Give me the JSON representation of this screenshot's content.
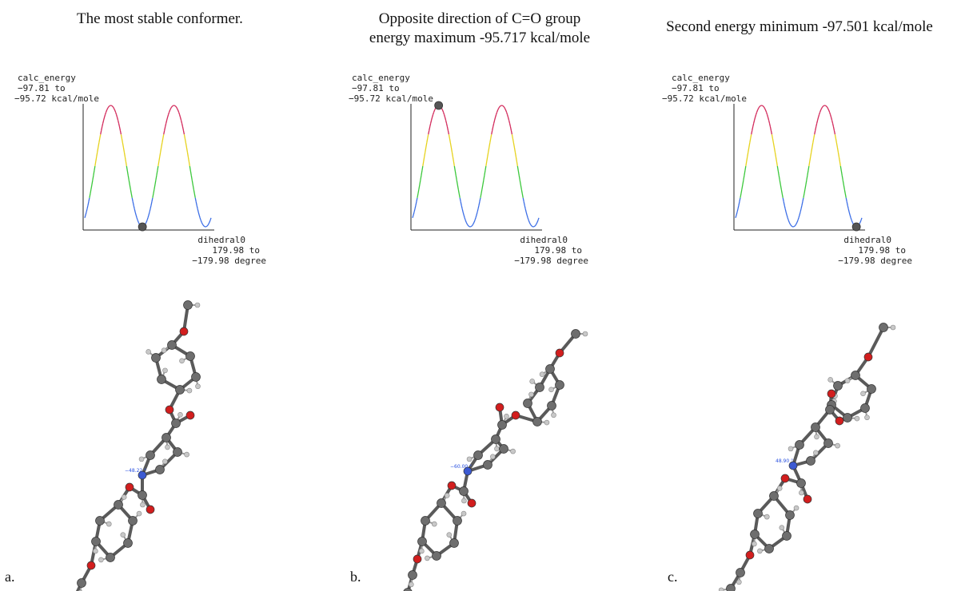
{
  "panels": [
    {
      "title_lines": [
        "The most stable conformer."
      ],
      "letter": "a.",
      "energy_label": "calc_energy",
      "energy_range_top": "−97.81 to",
      "energy_range_bottom": "−95.72 kcal/mole",
      "dihedral_label": "dihedral0",
      "dihedral_range_top": "179.98 to",
      "dihedral_range_bottom": "−179.98 degree",
      "measure_label": "−48.22 °",
      "marker_point": "first minimum"
    },
    {
      "title_lines": [
        "Opposite direction of C=O group",
        "energy maximum -95.717 kcal/mole"
      ],
      "letter": "b.",
      "energy_label": "calc_energy",
      "energy_range_top": "−97.81 to",
      "energy_range_bottom": "−95.72 kcal/mole",
      "dihedral_label": "dihedral0",
      "dihedral_range_top": "179.98 to",
      "dihedral_range_bottom": "−179.98 degree",
      "measure_label": "−60.00 °",
      "marker_point": "first maximum"
    },
    {
      "title_lines": [
        "Second energy minimum -97.501 kcal/mole"
      ],
      "letter": "c.",
      "energy_label": "calc_energy",
      "energy_range_top": "−97.81 to",
      "energy_range_bottom": "−95.72 kcal/mole",
      "dihedral_label": "dihedral0",
      "dihedral_range_top": "179.98 to",
      "dihedral_range_bottom": "−179.98 degree",
      "measure_label": "48.90 °",
      "marker_point": "second minimum"
    }
  ],
  "colors": {
    "curve_low": "#3c6ee6",
    "curve_mid_low": "#3cc83c",
    "curve_mid_high": "#e6d21e",
    "curve_high": "#d2285a",
    "marker": "#555555",
    "carbon": "#6e6e6e",
    "oxygen": "#d21e1e",
    "nitrogen": "#3c5ad2",
    "hydrogen": "#c8c8c8"
  }
}
